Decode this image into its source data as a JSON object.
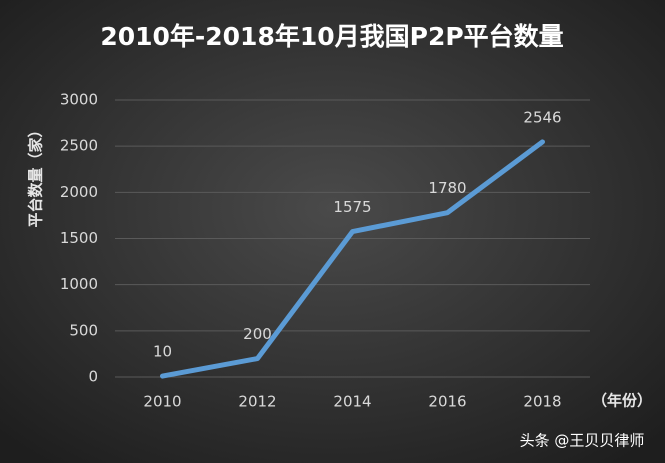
{
  "chart_data": {
    "type": "line",
    "title": "2010年-2018年10月我国P2P平台数量",
    "y_axis_label": "平台数量（家）",
    "x_axis_label": "（年份）",
    "categories": [
      "2010",
      "2012",
      "2014",
      "2016",
      "2018"
    ],
    "series": [
      {
        "name": "平台数量",
        "color": "#5b9bd5",
        "values": [
          10,
          200,
          1575,
          1780,
          2546
        ]
      }
    ],
    "ylim": [
      0,
      3000
    ],
    "yticks": [
      0,
      500,
      1000,
      1500,
      2000,
      2500,
      3000
    ],
    "grid": true,
    "watermark": "头条 @王贝贝律师"
  }
}
